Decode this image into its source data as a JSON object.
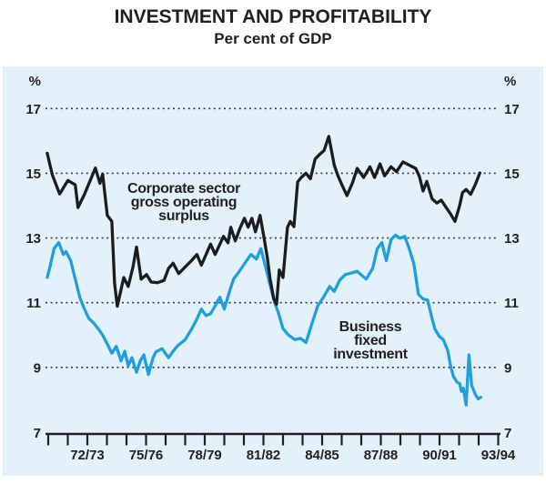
{
  "title": "INVESTMENT AND PROFITABILITY",
  "subtitle": "Per cent of GDP",
  "colors": {
    "panel_bg": "#e3f1fa",
    "corporate_line": "#1c1c1c",
    "business_line": "#1f9fde",
    "text": "#231f20",
    "grid": "#3a3a3a"
  },
  "y_axis": {
    "unit_left": "%",
    "unit_right": "%",
    "ticks": [
      7,
      9,
      11,
      13,
      15,
      17
    ]
  },
  "x_axis": {
    "tick_count": 24,
    "labels": [
      "72/73",
      "75/76",
      "78/79",
      "81/82",
      "84/85",
      "87/88",
      "90/91",
      "93/94"
    ],
    "label_every": 3,
    "first_label_tick_index": 2
  },
  "annotations": {
    "corporate": {
      "line1": "Corporate sector",
      "line2": "gross operating",
      "line3": "surplus"
    },
    "business": {
      "line1": "Business",
      "line2": "fixed",
      "line3": "investment"
    }
  },
  "chart_data": {
    "type": "line",
    "title": "INVESTMENT AND PROFITABILITY",
    "subtitle": "Per cent of GDP",
    "ylabel": "%",
    "ylim": [
      7,
      17
    ],
    "grid": "dotted horizontal lines at 9, 11, 13, 15, 17",
    "legend_position": "inline text annotations",
    "x_format": "decimal fiscal year (70/71 tick = 1970.5)",
    "series": [
      {
        "name": "Corporate sector gross operating surplus",
        "color": "#1c1c1c",
        "points": [
          [
            1970.45,
            15.62
          ],
          [
            1970.71,
            14.95
          ],
          [
            1971.08,
            14.36
          ],
          [
            1971.51,
            14.78
          ],
          [
            1971.88,
            14.64
          ],
          [
            1972.02,
            13.94
          ],
          [
            1972.35,
            14.35
          ],
          [
            1972.91,
            15.16
          ],
          [
            1973.14,
            14.69
          ],
          [
            1973.28,
            14.97
          ],
          [
            1973.52,
            13.7
          ],
          [
            1973.75,
            13.51
          ],
          [
            1973.89,
            11.6
          ],
          [
            1974.03,
            10.89
          ],
          [
            1974.36,
            11.78
          ],
          [
            1974.59,
            11.5
          ],
          [
            1974.83,
            12.1
          ],
          [
            1975.01,
            12.72
          ],
          [
            1975.25,
            11.73
          ],
          [
            1975.53,
            11.87
          ],
          [
            1975.76,
            11.64
          ],
          [
            1976.09,
            11.62
          ],
          [
            1976.42,
            11.69
          ],
          [
            1976.65,
            12.06
          ],
          [
            1976.88,
            12.22
          ],
          [
            1977.17,
            11.9
          ],
          [
            1977.49,
            12.1
          ],
          [
            1977.82,
            12.3
          ],
          [
            1978.1,
            12.49
          ],
          [
            1978.33,
            12.16
          ],
          [
            1978.8,
            12.81
          ],
          [
            1979.03,
            12.49
          ],
          [
            1979.46,
            13.05
          ],
          [
            1979.69,
            12.85
          ],
          [
            1979.83,
            13.33
          ],
          [
            1980.06,
            12.91
          ],
          [
            1980.3,
            13.3
          ],
          [
            1980.53,
            13.61
          ],
          [
            1980.72,
            13.33
          ],
          [
            1980.91,
            13.61
          ],
          [
            1981.09,
            13.19
          ],
          [
            1981.33,
            13.7
          ],
          [
            1981.56,
            12.9
          ],
          [
            1981.7,
            12.39
          ],
          [
            1981.84,
            11.73
          ],
          [
            1982.03,
            11.12
          ],
          [
            1982.17,
            10.95
          ],
          [
            1982.31,
            12.01
          ],
          [
            1982.5,
            11.78
          ],
          [
            1982.73,
            13.33
          ],
          [
            1982.87,
            13.51
          ],
          [
            1983.06,
            13.35
          ],
          [
            1983.25,
            14.73
          ],
          [
            1983.43,
            14.87
          ],
          [
            1983.67,
            15.0
          ],
          [
            1983.9,
            14.83
          ],
          [
            1984.14,
            15.44
          ],
          [
            1984.37,
            15.58
          ],
          [
            1984.6,
            15.7
          ],
          [
            1984.84,
            16.14
          ],
          [
            1985.12,
            15.25
          ],
          [
            1985.31,
            14.92
          ],
          [
            1985.54,
            14.6
          ],
          [
            1985.77,
            14.31
          ],
          [
            1986.05,
            14.7
          ],
          [
            1986.29,
            15.15
          ],
          [
            1986.62,
            14.87
          ],
          [
            1986.94,
            15.2
          ],
          [
            1987.18,
            14.87
          ],
          [
            1987.46,
            15.29
          ],
          [
            1987.69,
            14.92
          ],
          [
            1988.02,
            15.2
          ],
          [
            1988.3,
            15.05
          ],
          [
            1988.63,
            15.35
          ],
          [
            1988.95,
            15.25
          ],
          [
            1989.28,
            15.15
          ],
          [
            1989.47,
            14.9
          ],
          [
            1989.66,
            14.45
          ],
          [
            1989.85,
            14.75
          ],
          [
            1990.12,
            14.21
          ],
          [
            1990.36,
            14.08
          ],
          [
            1990.59,
            14.17
          ],
          [
            1990.83,
            13.95
          ],
          [
            1991.06,
            13.75
          ],
          [
            1991.29,
            13.51
          ],
          [
            1991.53,
            14.0
          ],
          [
            1991.67,
            14.4
          ],
          [
            1991.86,
            14.5
          ],
          [
            1992.09,
            14.35
          ],
          [
            1992.33,
            14.65
          ],
          [
            1992.56,
            15.01
          ]
        ]
      },
      {
        "name": "Business fixed investment",
        "color": "#1f9fde",
        "points": [
          [
            1970.45,
            11.78
          ],
          [
            1970.57,
            12.06
          ],
          [
            1970.8,
            12.67
          ],
          [
            1971.04,
            12.86
          ],
          [
            1971.27,
            12.49
          ],
          [
            1971.41,
            12.58
          ],
          [
            1971.65,
            12.3
          ],
          [
            1971.88,
            11.73
          ],
          [
            1972.11,
            11.17
          ],
          [
            1972.35,
            10.8
          ],
          [
            1972.58,
            10.51
          ],
          [
            1972.82,
            10.37
          ],
          [
            1973.05,
            10.2
          ],
          [
            1973.28,
            10.0
          ],
          [
            1973.52,
            9.72
          ],
          [
            1973.75,
            9.44
          ],
          [
            1973.98,
            9.65
          ],
          [
            1974.22,
            9.2
          ],
          [
            1974.41,
            9.5
          ],
          [
            1974.59,
            9.05
          ],
          [
            1974.78,
            9.3
          ],
          [
            1975.01,
            8.85
          ],
          [
            1975.2,
            9.2
          ],
          [
            1975.39,
            9.39
          ],
          [
            1975.62,
            8.78
          ],
          [
            1975.86,
            9.3
          ],
          [
            1976.0,
            9.48
          ],
          [
            1976.32,
            9.58
          ],
          [
            1976.65,
            9.3
          ],
          [
            1976.88,
            9.5
          ],
          [
            1977.12,
            9.67
          ],
          [
            1977.49,
            9.85
          ],
          [
            1977.87,
            10.23
          ],
          [
            1978.1,
            10.5
          ],
          [
            1978.33,
            10.8
          ],
          [
            1978.57,
            10.6
          ],
          [
            1978.8,
            10.66
          ],
          [
            1979.03,
            10.9
          ],
          [
            1979.27,
            11.17
          ],
          [
            1979.5,
            10.8
          ],
          [
            1979.74,
            11.3
          ],
          [
            1979.97,
            11.73
          ],
          [
            1980.21,
            11.92
          ],
          [
            1980.53,
            12.2
          ],
          [
            1980.86,
            12.49
          ],
          [
            1981.14,
            12.35
          ],
          [
            1981.37,
            12.67
          ],
          [
            1981.61,
            12.1
          ],
          [
            1981.84,
            11.55
          ],
          [
            1982.07,
            11.0
          ],
          [
            1982.26,
            10.7
          ],
          [
            1982.5,
            10.2
          ],
          [
            1982.78,
            10.0
          ],
          [
            1983.11,
            9.86
          ],
          [
            1983.39,
            9.9
          ],
          [
            1983.67,
            9.77
          ],
          [
            1983.95,
            10.3
          ],
          [
            1984.27,
            10.9
          ],
          [
            1984.6,
            11.2
          ],
          [
            1984.88,
            11.5
          ],
          [
            1985.12,
            11.35
          ],
          [
            1985.4,
            11.7
          ],
          [
            1985.68,
            11.87
          ],
          [
            1986.0,
            11.92
          ],
          [
            1986.29,
            11.97
          ],
          [
            1986.52,
            11.85
          ],
          [
            1986.75,
            11.73
          ],
          [
            1987.08,
            12.06
          ],
          [
            1987.32,
            12.67
          ],
          [
            1987.55,
            12.86
          ],
          [
            1987.78,
            12.3
          ],
          [
            1988.02,
            12.95
          ],
          [
            1988.25,
            13.09
          ],
          [
            1988.48,
            12.99
          ],
          [
            1988.72,
            13.05
          ],
          [
            1988.95,
            12.67
          ],
          [
            1989.19,
            12.2
          ],
          [
            1989.42,
            11.26
          ],
          [
            1989.66,
            11.12
          ],
          [
            1989.89,
            11.08
          ],
          [
            1990.12,
            10.51
          ],
          [
            1990.26,
            10.19
          ],
          [
            1990.5,
            9.95
          ],
          [
            1990.69,
            9.86
          ],
          [
            1990.92,
            9.53
          ],
          [
            1991.06,
            9.06
          ],
          [
            1991.2,
            8.73
          ],
          [
            1991.39,
            8.55
          ],
          [
            1991.53,
            8.5
          ],
          [
            1991.62,
            8.26
          ],
          [
            1991.72,
            8.36
          ],
          [
            1991.86,
            7.84
          ],
          [
            1992.0,
            9.39
          ],
          [
            1992.14,
            8.45
          ],
          [
            1992.33,
            8.17
          ],
          [
            1992.47,
            8.03
          ],
          [
            1992.61,
            8.08
          ]
        ]
      }
    ]
  }
}
